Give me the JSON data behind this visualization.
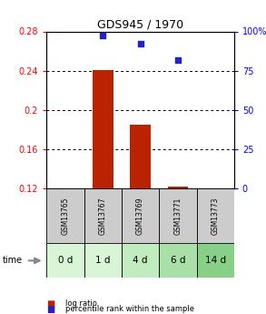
{
  "title": "GDS945 / 1970",
  "samples": [
    "GSM13765",
    "GSM13767",
    "GSM13769",
    "GSM13771",
    "GSM13773"
  ],
  "time_labels": [
    "0 d",
    "1 d",
    "4 d",
    "6 d",
    "14 d"
  ],
  "log_ratio": [
    null,
    0.241,
    0.185,
    0.122,
    null
  ],
  "percentile_rank": [
    null,
    97.5,
    92.0,
    82.0,
    null
  ],
  "ylim_left": [
    0.12,
    0.28
  ],
  "ylim_right": [
    0,
    100
  ],
  "yticks_left": [
    0.12,
    0.16,
    0.2,
    0.24,
    0.28
  ],
  "yticks_right": [
    0,
    25,
    50,
    75,
    100
  ],
  "ytick_labels_right": [
    "0",
    "25",
    "50",
    "75",
    "100%"
  ],
  "bar_color": "#bb2200",
  "scatter_color": "#2222cc",
  "sample_bg": "#cccccc",
  "time_bg_colors": [
    "#d8f5d8",
    "#d8f5d8",
    "#c0ecc0",
    "#a8e0a8",
    "#88d088"
  ],
  "legend_bar_label": "log ratio",
  "legend_scatter_label": "percentile rank within the sample"
}
